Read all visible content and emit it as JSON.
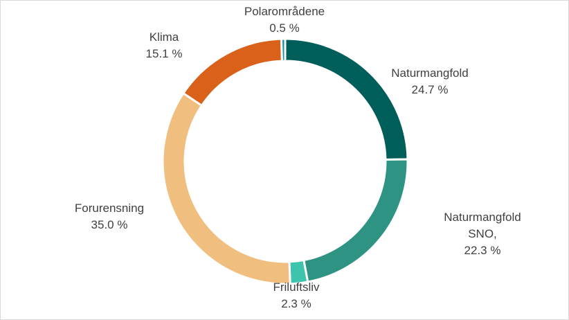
{
  "chart_data": {
    "type": "pie",
    "variant": "donut",
    "title": "",
    "unit": "%",
    "slices": [
      {
        "name": "Naturmangfold",
        "value": 24.7,
        "label_lines": [
          "Naturmangfold",
          "24.7 %"
        ],
        "color": "#005e5a"
      },
      {
        "name": "Naturmangfold SNO,",
        "value": 22.3,
        "label_lines": [
          "Naturmangfold",
          "SNO,",
          "22.3 %"
        ],
        "color": "#2e9383"
      },
      {
        "name": "Friluftsliv",
        "value": 2.3,
        "label_lines": [
          "Friluftsliv",
          "2.3 %"
        ],
        "color": "#3ec4ac"
      },
      {
        "name": "Forurensning",
        "value": 35.0,
        "label_lines": [
          "Forurensning",
          "35.0 %"
        ],
        "color": "#f0bf80"
      },
      {
        "name": "Klima",
        "value": 15.1,
        "label_lines": [
          "Klima",
          "15.1 %"
        ],
        "color": "#d9611a"
      },
      {
        "name": "Polarområdene",
        "value": 0.5,
        "label_lines": [
          "Polarområdene",
          "0.5 %"
        ],
        "color": "#1e8fa8"
      }
    ],
    "legend": "none",
    "start_angle": "12 o'clock",
    "direction": "clockwise"
  }
}
